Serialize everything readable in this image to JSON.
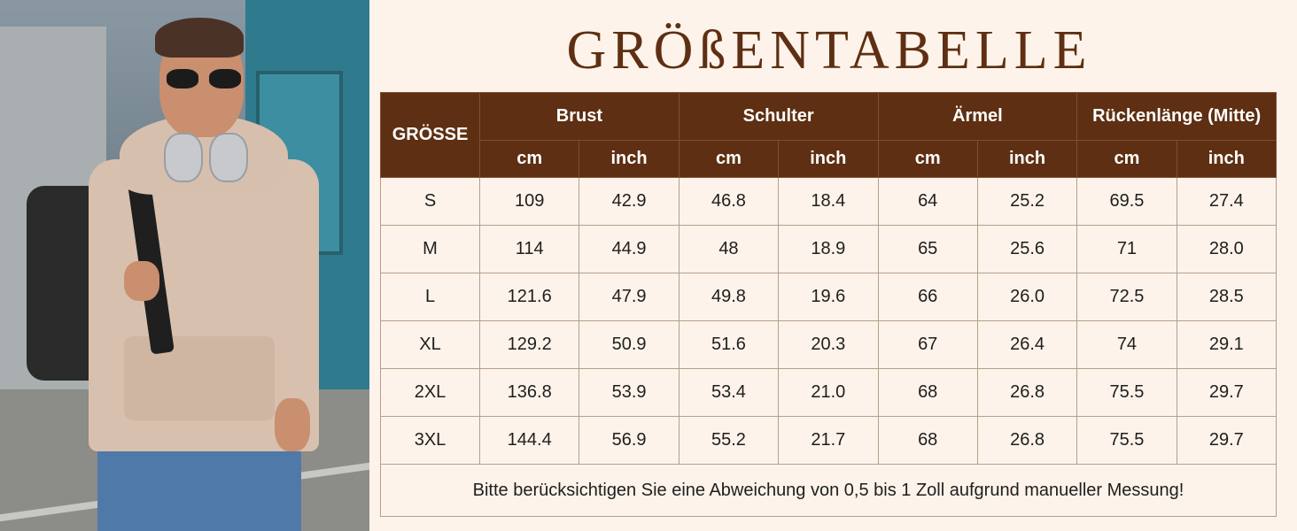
{
  "title": "GRÖßENTABELLE",
  "table": {
    "size_header": "GRÖSSE",
    "groups": [
      "Brust",
      "Schulter",
      "Ärmel",
      "Rückenlänge (Mitte)"
    ],
    "units": [
      "cm",
      "inch",
      "cm",
      "inch",
      "cm",
      "inch",
      "cm",
      "inch"
    ],
    "rows": [
      [
        "S",
        "109",
        "42.9",
        "46.8",
        "18.4",
        "64",
        "25.2",
        "69.5",
        "27.4"
      ],
      [
        "M",
        "114",
        "44.9",
        "48",
        "18.9",
        "65",
        "25.6",
        "71",
        "28.0"
      ],
      [
        "L",
        "121.6",
        "47.9",
        "49.8",
        "19.6",
        "66",
        "26.0",
        "72.5",
        "28.5"
      ],
      [
        "XL",
        "129.2",
        "50.9",
        "51.6",
        "20.3",
        "67",
        "26.4",
        "74",
        "29.1"
      ],
      [
        "2XL",
        "136.8",
        "53.9",
        "53.4",
        "21.0",
        "68",
        "26.8",
        "75.5",
        "29.7"
      ],
      [
        "3XL",
        "144.4",
        "56.9",
        "55.2",
        "21.7",
        "68",
        "26.8",
        "75.5",
        "29.7"
      ]
    ],
    "note": "Bitte berücksichtigen Sie eine Abweichung von 0,5 bis 1 Zoll aufgrund manueller Messung!"
  },
  "colors": {
    "header_bg": "#5e2f12",
    "page_bg": "#fdf3ea"
  }
}
